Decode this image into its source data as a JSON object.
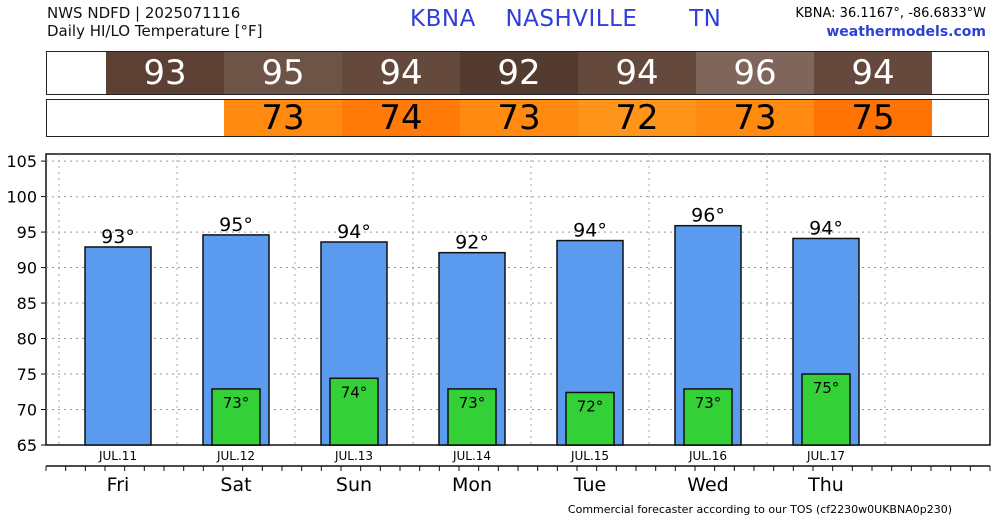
{
  "header": {
    "line1": "NWS NDFD | 2025071116",
    "line2": "Daily HI/LO Temperature [°F]",
    "station": "KBNA",
    "city": "NASHVILLE",
    "state": "TN",
    "coords": "KBNA: 36.1167°, -86.6833°W",
    "site": "weathermodels.com"
  },
  "hi_strip": [
    {
      "label": "93",
      "color": "#5c4033"
    },
    {
      "label": "95",
      "color": "#6e5347"
    },
    {
      "label": "94",
      "color": "#65493d"
    },
    {
      "label": "92",
      "color": "#543b2f"
    },
    {
      "label": "94",
      "color": "#65493d"
    },
    {
      "label": "96",
      "color": "#7f655a"
    },
    {
      "label": "94",
      "color": "#65493d"
    }
  ],
  "lo_strip": [
    {
      "label": "73",
      "color": "#ff8a0f"
    },
    {
      "label": "74",
      "color": "#ff7a08"
    },
    {
      "label": "73",
      "color": "#ff8a0f"
    },
    {
      "label": "72",
      "color": "#ff941a"
    },
    {
      "label": "73",
      "color": "#ff8a0f"
    },
    {
      "label": "75",
      "color": "#ff7204"
    }
  ],
  "chart_data": {
    "type": "bar",
    "categories": [
      "Fri",
      "Sat",
      "Sun",
      "Mon",
      "Tue",
      "Wed",
      "Thu"
    ],
    "dates": [
      "JUL.11",
      "JUL.12",
      "JUL.13",
      "JUL.14",
      "JUL.15",
      "JUL.16",
      "JUL.17"
    ],
    "series": [
      {
        "values": [
          93,
          95,
          94,
          92,
          94,
          96,
          94
        ],
        "labels": [
          "93°",
          "95°",
          "94°",
          "92°",
          "94°",
          "96°",
          "94°"
        ],
        "color": "#5b9bef"
      },
      {
        "values": [
          null,
          73,
          74,
          73,
          72,
          73,
          75
        ],
        "labels": [
          "",
          "73°",
          "74°",
          "73°",
          "72°",
          "73°",
          "75°"
        ],
        "color": "#33d038"
      }
    ],
    "hi_bar_values": [
      92.9,
      94.6,
      93.6,
      92.1,
      93.8,
      95.9,
      94.1
    ],
    "lo_bar_values": [
      null,
      72.9,
      74.4,
      72.9,
      72.4,
      72.9,
      75.0
    ],
    "ylim": [
      65,
      106
    ],
    "yticks": [
      65,
      70,
      75,
      80,
      85,
      90,
      95,
      100,
      105
    ],
    "ytick_labels": [
      "65",
      "70",
      "75",
      "80",
      "85",
      "90",
      "95",
      "100",
      "105"
    ],
    "grid": true,
    "xlabel": "",
    "ylabel": ""
  },
  "footer": "Commercial forecaster according to our TOS (cf2230w0UKBNA0p230)"
}
